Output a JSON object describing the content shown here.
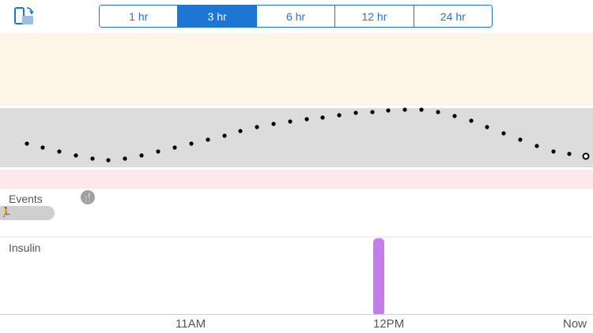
{
  "toolbar": {
    "rotate_icon": "rotate-device-icon"
  },
  "time_ranges": {
    "items": [
      "1 hr",
      "3 hr",
      "6 hr",
      "12 hr",
      "24 hr"
    ],
    "selected": "3 hr"
  },
  "chart": {
    "bands": {
      "high_color": "#fdf5e8",
      "target_color": "#dcdcdc",
      "low_color": "#fde7ea"
    },
    "glucose_series_color": "#000000",
    "last_point_hollow": true
  },
  "events": {
    "label": "Events",
    "meal_icon": "fork-knife-icon",
    "exercise_icon": "running-icon"
  },
  "insulin": {
    "label": "Insulin",
    "bolus_color": "#c27ee6"
  },
  "x_axis": {
    "ticks": [
      "11AM",
      "12PM",
      "Now"
    ]
  }
}
